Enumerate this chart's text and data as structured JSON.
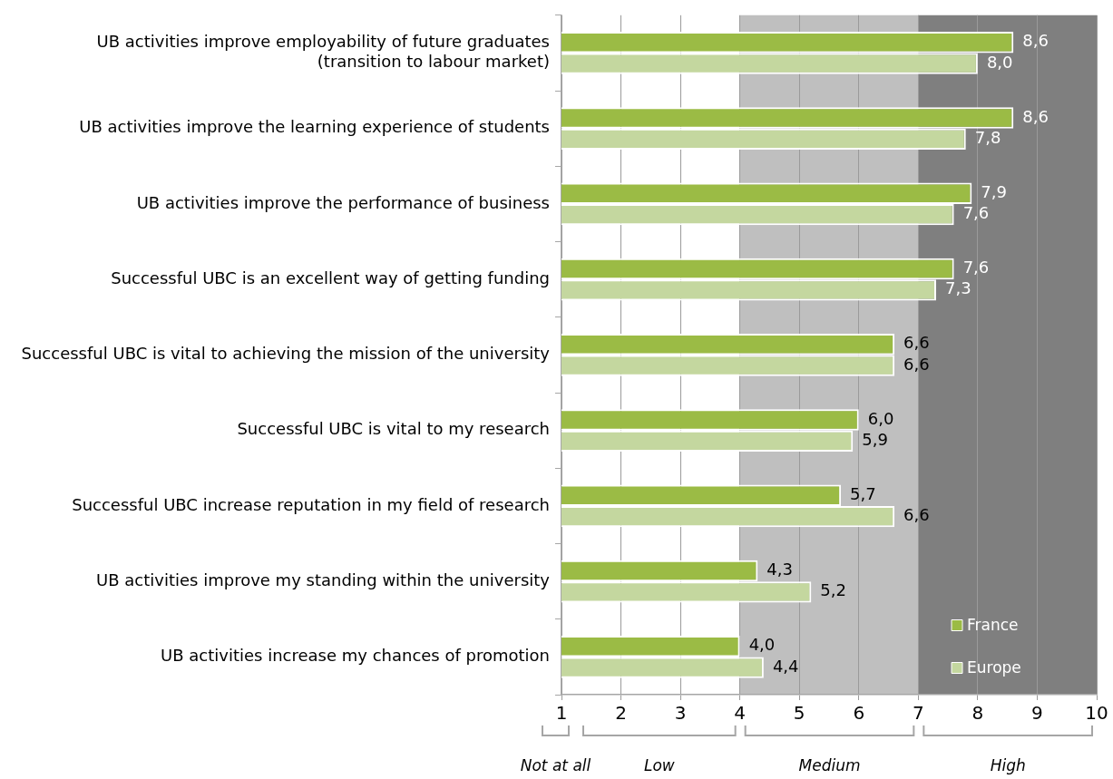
{
  "chart_data": {
    "type": "bar",
    "orientation": "horizontal",
    "categories": [
      "UB activities improve employability of future graduates\n(transition to labour market)",
      "UB activities improve the learning experience of students",
      "UB activities improve the performance of business",
      "Successful UBC is an excellent way of getting funding",
      "Successful UBC is vital to achieving the mission of the university",
      "Successful UBC is vital to my research",
      "Successful UBC increase reputation in my field of research",
      "UB activities improve my standing within the university",
      "UB activities increase my chances of promotion"
    ],
    "series": [
      {
        "name": "France",
        "color": "#9bbb45",
        "values": [
          8.6,
          8.6,
          7.9,
          7.6,
          6.6,
          6.0,
          5.7,
          4.3,
          4.0
        ],
        "value_labels": [
          "8,6",
          "8,6",
          "7,9",
          "7,6",
          "6,6",
          "6,0",
          "5,7",
          "4,3",
          "4,0"
        ]
      },
      {
        "name": "Europe",
        "color": "#c4d79f",
        "values": [
          8.0,
          7.8,
          7.6,
          7.3,
          6.6,
          5.9,
          6.6,
          5.2,
          4.4
        ],
        "value_labels": [
          "8,0",
          "7,8",
          "7,6",
          "7,3",
          "6,6",
          "5,9",
          "6,6",
          "5,2",
          "4,4"
        ]
      }
    ],
    "xlim": [
      1,
      10
    ],
    "xticks": [
      1,
      2,
      3,
      4,
      5,
      6,
      7,
      8,
      9,
      10
    ],
    "grid": "x",
    "legend": "bottom right",
    "bands": [
      {
        "axis": "x",
        "from": 4,
        "to": 7,
        "color": "#bfbfbf"
      },
      {
        "axis": "x",
        "from": 7,
        "to": 10,
        "color": "#7f7f7f"
      }
    ],
    "annotations": [
      "Not at all",
      "Low",
      "Medium",
      "High"
    ]
  }
}
